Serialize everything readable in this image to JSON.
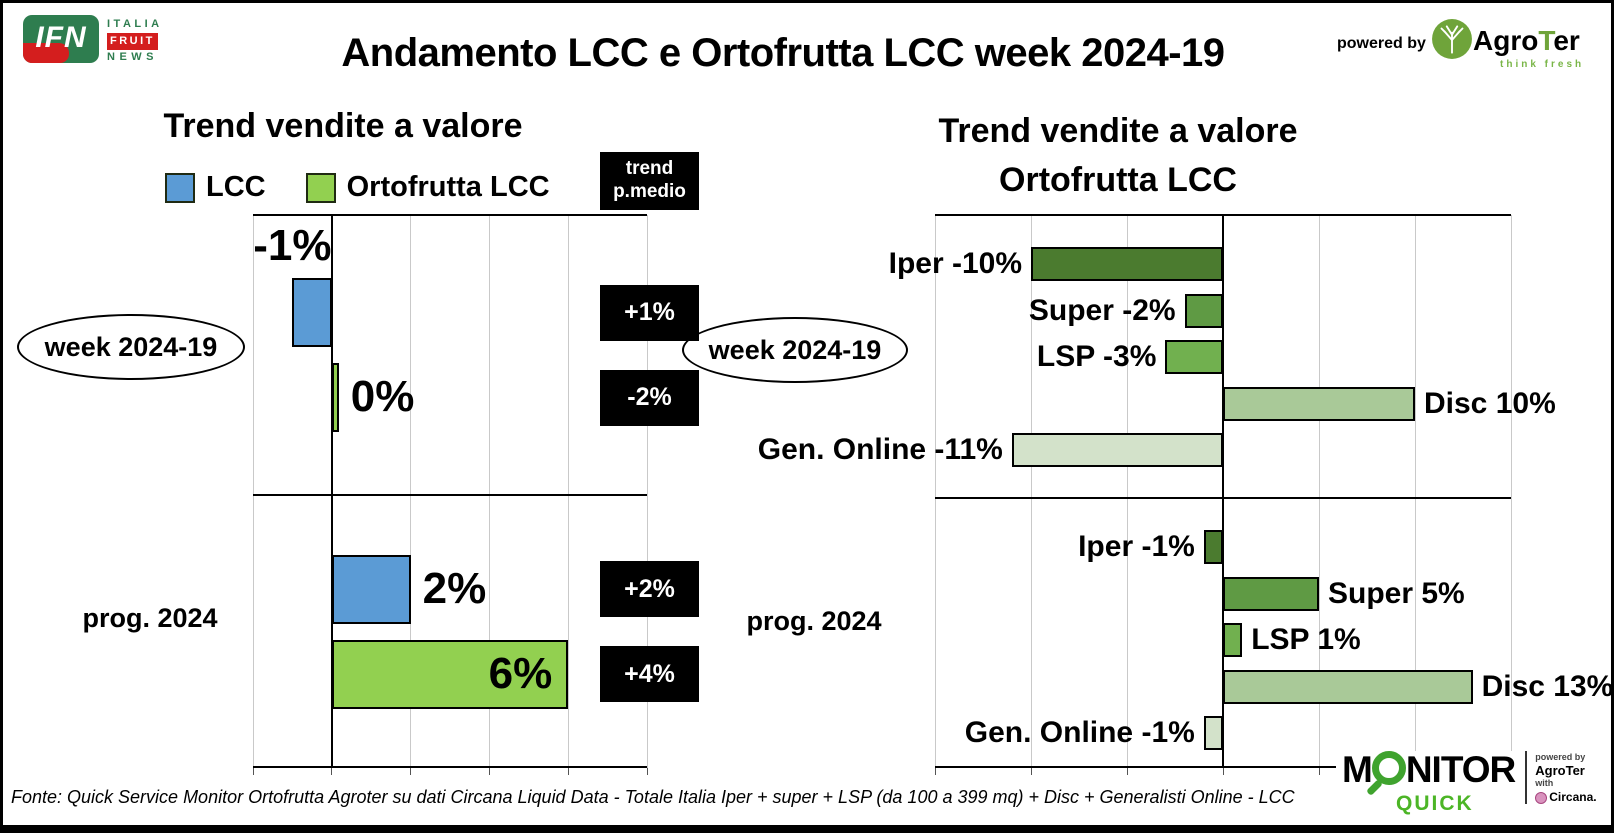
{
  "header": {
    "title": "Andamento LCC e Ortofrutta LCC week 2024-19",
    "powered_by": "powered by",
    "ifn": {
      "abbr": "IFN",
      "italia": "ITALIA",
      "fruit": "FRUIT",
      "news": "NEWS"
    },
    "agroter": {
      "agro": "Agro",
      "t": "T",
      "er": "er",
      "tagline": "think fresh"
    }
  },
  "chart_data": [
    {
      "type": "bar",
      "orientation": "horizontal",
      "title": "Trend vendite a valore",
      "groups": [
        "week 2024-19",
        "prog. 2024"
      ],
      "series": [
        {
          "name": "LCC",
          "color": "#5b9bd5",
          "values": [
            -1,
            2
          ],
          "labels": [
            "-1%",
            "2%"
          ]
        },
        {
          "name": "Ortofrutta LCC",
          "color": "#92d050",
          "values": [
            0,
            6
          ],
          "labels": [
            "0%",
            "6%"
          ]
        }
      ],
      "label_layout": [
        [
          "above-left",
          "right"
        ],
        [
          "right",
          "inside-right"
        ]
      ],
      "trend_header": [
        "trend",
        "p.medio"
      ],
      "trend_pmedio": [
        [
          "+1%",
          "-2%"
        ],
        [
          "+2%",
          "+4%"
        ]
      ],
      "xlim": [
        -2,
        8
      ],
      "grid_step": 2,
      "unit": "%",
      "grid": true,
      "legend_position": "top"
    },
    {
      "type": "bar",
      "orientation": "horizontal",
      "title_line1": "Trend vendite a valore",
      "title_line2": "Ortofrutta LCC",
      "groups": [
        "week 2024-19",
        "prog. 2024"
      ],
      "categories": [
        {
          "name": "Iper",
          "color": "#4b7b2f",
          "values": [
            -10,
            -1
          ],
          "labels": [
            "Iper -10%",
            "Iper -1%"
          ]
        },
        {
          "name": "Super",
          "color": "#5f9a44",
          "values": [
            -2,
            5
          ],
          "labels": [
            "Super -2%",
            "Super 5%"
          ]
        },
        {
          "name": "LSP",
          "color": "#71b04f",
          "values": [
            -3,
            1
          ],
          "labels": [
            "LSP -3%",
            "LSP 1%"
          ]
        },
        {
          "name": "Disc",
          "color": "#a9c998",
          "values": [
            10,
            13
          ],
          "labels": [
            "Disc 10%",
            "Disc 13%"
          ]
        },
        {
          "name": "Gen. Online",
          "color": "#d3e2ca",
          "values": [
            -11,
            -1
          ],
          "labels": [
            "Gen. Online -11%",
            "Gen. Online -1%"
          ]
        }
      ],
      "xlim": [
        -15,
        15
      ],
      "grid_step": 5,
      "unit": "%",
      "grid": true
    }
  ],
  "footer": {
    "source": "Fonte: Quick Service Monitor Ortofrutta Agroter su dati Circana Liquid Data - Totale Italia Iper + super + LSP (da 100 a 399 mq) + Disc + Generalisti Online - LCC"
  },
  "monitor": {
    "m": "M",
    "nitor": "NITOR",
    "quick": "QUICK",
    "powered_by": "powered by",
    "agroter": "AgroTer",
    "with": "with",
    "circana": "Circana."
  }
}
